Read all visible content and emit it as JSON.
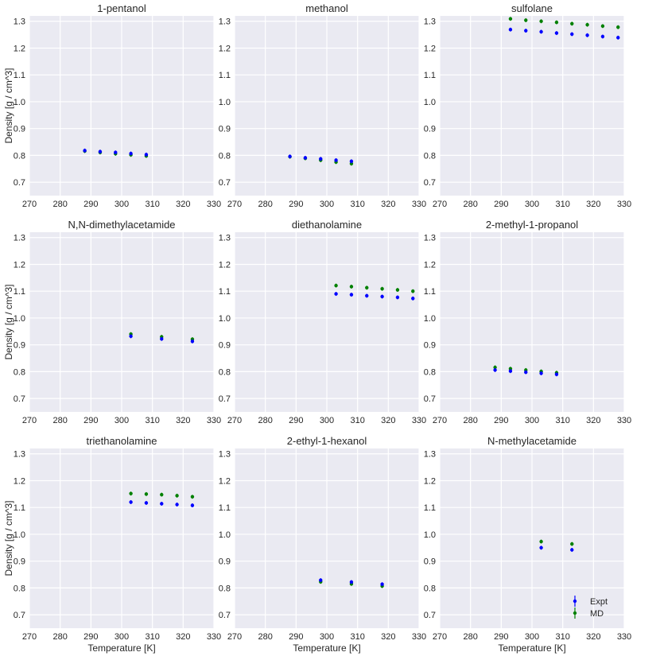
{
  "figure": {
    "ylabel": "Density [g / cm^3]",
    "xlabel": "Temperature [K]",
    "legend": [
      {
        "label": "Expt",
        "color": "#0000ff"
      },
      {
        "label": "MD",
        "color": "#008000"
      }
    ]
  },
  "chart_data": [
    {
      "type": "scatter",
      "title": "1-pentanol",
      "xlim": [
        270,
        330
      ],
      "ylim": [
        0.65,
        1.32
      ],
      "xticks": [
        "270",
        "280",
        "290",
        "300",
        "310",
        "320",
        "330"
      ],
      "yticks": [
        "0.7",
        "0.8",
        "0.9",
        "1.0",
        "1.1",
        "1.2",
        "1.3"
      ],
      "series": [
        {
          "name": "Expt",
          "color": "#0000ff",
          "x": [
            288,
            293,
            298,
            303,
            308
          ],
          "y": [
            0.818,
            0.814,
            0.811,
            0.807,
            0.803
          ]
        },
        {
          "name": "MD",
          "color": "#008000",
          "x": [
            288,
            293,
            298,
            303,
            308
          ],
          "y": [
            0.816,
            0.811,
            0.806,
            0.802,
            0.798
          ]
        }
      ]
    },
    {
      "type": "scatter",
      "title": "methanol",
      "xlim": [
        270,
        330
      ],
      "ylim": [
        0.65,
        1.32
      ],
      "xticks": [
        "270",
        "280",
        "290",
        "300",
        "310",
        "320",
        "330"
      ],
      "yticks": [
        "0.7",
        "0.8",
        "0.9",
        "1.0",
        "1.1",
        "1.2",
        "1.3"
      ],
      "series": [
        {
          "name": "Expt",
          "color": "#0000ff",
          "x": [
            288,
            293,
            298,
            303,
            308
          ],
          "y": [
            0.796,
            0.791,
            0.787,
            0.782,
            0.778
          ]
        },
        {
          "name": "MD",
          "color": "#008000",
          "x": [
            288,
            293,
            298,
            303,
            308
          ],
          "y": [
            0.795,
            0.789,
            0.782,
            0.775,
            0.769
          ]
        }
      ]
    },
    {
      "type": "scatter",
      "title": "sulfolane",
      "xlim": [
        270,
        330
      ],
      "ylim": [
        0.65,
        1.32
      ],
      "xticks": [
        "270",
        "280",
        "290",
        "300",
        "310",
        "320",
        "330"
      ],
      "yticks": [
        "0.7",
        "0.8",
        "0.9",
        "1.0",
        "1.1",
        "1.2",
        "1.3"
      ],
      "series": [
        {
          "name": "Expt",
          "color": "#0000ff",
          "x": [
            293,
            298,
            303,
            308,
            313,
            318,
            323,
            328
          ],
          "y": [
            1.269,
            1.265,
            1.261,
            1.256,
            1.252,
            1.248,
            1.243,
            1.239
          ]
        },
        {
          "name": "MD",
          "color": "#008000",
          "x": [
            293,
            298,
            303,
            308,
            313,
            318,
            323,
            328
          ],
          "y": [
            1.309,
            1.304,
            1.3,
            1.296,
            1.291,
            1.287,
            1.282,
            1.278
          ]
        }
      ]
    },
    {
      "type": "scatter",
      "title": "N,N-dimethylacetamide",
      "xlim": [
        270,
        330
      ],
      "ylim": [
        0.65,
        1.32
      ],
      "xticks": [
        "270",
        "280",
        "290",
        "300",
        "310",
        "320",
        "330"
      ],
      "yticks": [
        "0.7",
        "0.8",
        "0.9",
        "1.0",
        "1.1",
        "1.2",
        "1.3"
      ],
      "series": [
        {
          "name": "Expt",
          "color": "#0000ff",
          "x": [
            303,
            313,
            323
          ],
          "y": [
            0.932,
            0.922,
            0.913
          ]
        },
        {
          "name": "MD",
          "color": "#008000",
          "x": [
            303,
            313,
            323
          ],
          "y": [
            0.94,
            0.93,
            0.921
          ]
        }
      ]
    },
    {
      "type": "scatter",
      "title": "diethanolamine",
      "xlim": [
        270,
        330
      ],
      "ylim": [
        0.65,
        1.32
      ],
      "xticks": [
        "270",
        "280",
        "290",
        "300",
        "310",
        "320",
        "330"
      ],
      "yticks": [
        "0.7",
        "0.8",
        "0.9",
        "1.0",
        "1.1",
        "1.2",
        "1.3"
      ],
      "series": [
        {
          "name": "Expt",
          "color": "#0000ff",
          "x": [
            303,
            308,
            313,
            318,
            323,
            328
          ],
          "y": [
            1.09,
            1.087,
            1.083,
            1.08,
            1.077,
            1.073
          ]
        },
        {
          "name": "MD",
          "color": "#008000",
          "x": [
            303,
            308,
            313,
            318,
            323,
            328
          ],
          "y": [
            1.121,
            1.117,
            1.113,
            1.109,
            1.105,
            1.1
          ]
        }
      ]
    },
    {
      "type": "scatter",
      "title": "2-methyl-1-propanol",
      "xlim": [
        270,
        330
      ],
      "ylim": [
        0.65,
        1.32
      ],
      "xticks": [
        "270",
        "280",
        "290",
        "300",
        "310",
        "320",
        "330"
      ],
      "yticks": [
        "0.7",
        "0.8",
        "0.9",
        "1.0",
        "1.1",
        "1.2",
        "1.3"
      ],
      "series": [
        {
          "name": "Expt",
          "color": "#0000ff",
          "x": [
            288,
            293,
            298,
            303,
            308
          ],
          "y": [
            0.806,
            0.802,
            0.798,
            0.794,
            0.79
          ]
        },
        {
          "name": "MD",
          "color": "#008000",
          "x": [
            288,
            293,
            298,
            303,
            308
          ],
          "y": [
            0.816,
            0.811,
            0.806,
            0.801,
            0.796
          ]
        }
      ]
    },
    {
      "type": "scatter",
      "title": "triethanolamine",
      "xlim": [
        270,
        330
      ],
      "ylim": [
        0.65,
        1.32
      ],
      "xticks": [
        "270",
        "280",
        "290",
        "300",
        "310",
        "320",
        "330"
      ],
      "yticks": [
        "0.7",
        "0.8",
        "0.9",
        "1.0",
        "1.1",
        "1.2",
        "1.3"
      ],
      "series": [
        {
          "name": "Expt",
          "color": "#0000ff",
          "x": [
            303,
            308,
            313,
            318,
            323
          ],
          "y": [
            1.12,
            1.117,
            1.114,
            1.111,
            1.108
          ]
        },
        {
          "name": "MD",
          "color": "#008000",
          "x": [
            303,
            308,
            313,
            318,
            323
          ],
          "y": [
            1.152,
            1.15,
            1.148,
            1.144,
            1.14
          ]
        }
      ]
    },
    {
      "type": "scatter",
      "title": "2-ethyl-1-hexanol",
      "xlim": [
        270,
        330
      ],
      "ylim": [
        0.65,
        1.32
      ],
      "xticks": [
        "270",
        "280",
        "290",
        "300",
        "310",
        "320",
        "330"
      ],
      "yticks": [
        "0.7",
        "0.8",
        "0.9",
        "1.0",
        "1.1",
        "1.2",
        "1.3"
      ],
      "series": [
        {
          "name": "Expt",
          "color": "#0000ff",
          "x": [
            298,
            308,
            318
          ],
          "y": [
            0.829,
            0.822,
            0.814
          ]
        },
        {
          "name": "MD",
          "color": "#008000",
          "x": [
            298,
            308,
            318
          ],
          "y": [
            0.823,
            0.815,
            0.807
          ]
        }
      ]
    },
    {
      "type": "scatter",
      "title": "N-methylacetamide",
      "xlim": [
        270,
        330
      ],
      "ylim": [
        0.65,
        1.32
      ],
      "xticks": [
        "270",
        "280",
        "290",
        "300",
        "310",
        "320",
        "330"
      ],
      "yticks": [
        "0.7",
        "0.8",
        "0.9",
        "1.0",
        "1.1",
        "1.2",
        "1.3"
      ],
      "series": [
        {
          "name": "Expt",
          "color": "#0000ff",
          "x": [
            303,
            313
          ],
          "y": [
            0.95,
            0.942
          ]
        },
        {
          "name": "MD",
          "color": "#008000",
          "x": [
            303,
            313
          ],
          "y": [
            0.973,
            0.964
          ]
        }
      ]
    }
  ]
}
